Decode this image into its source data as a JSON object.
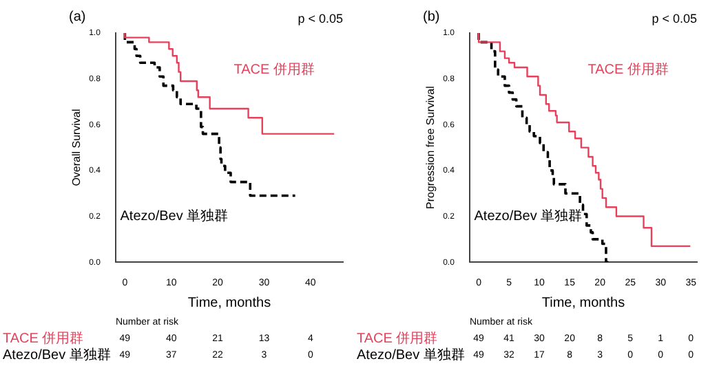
{
  "chart_data": [
    {
      "type": "step",
      "title": "(a)",
      "xlabel": "Time, months",
      "ylabel": "Overall Survival",
      "xlim": [
        -2,
        47
      ],
      "xticks": [
        0,
        10,
        20,
        30,
        40
      ],
      "ylim": [
        0,
        1.0
      ],
      "yticks": [
        {
          "value": 0,
          "label": "0.0"
        },
        {
          "value": 0.2,
          "label": "0.2"
        },
        {
          "value": 0.4,
          "label": "0.4"
        },
        {
          "value": 0.6,
          "label": "0.6"
        },
        {
          "value": 0.8,
          "label": "0.8"
        },
        {
          "value": 1,
          "label": "1.0"
        }
      ],
      "grid": false,
      "legend": false,
      "marker": "none",
      "series": [
        {
          "name": "TACE 併用群",
          "color": "#e8405a",
          "line_style": "solid",
          "x": [
            0,
            5.2,
            9.5,
            10.3,
            11.2,
            11.6,
            12,
            15.5,
            15.8,
            18.3,
            26.6,
            29.6,
            33.8,
            45.1
          ],
          "values": [
            1,
            0.98,
            0.96,
            0.93,
            0.9,
            0.87,
            0.83,
            0.79,
            0.75,
            0.72,
            0.67,
            0.63,
            0.56,
            0.56
          ]
        },
        {
          "name": "Atezo/Bev 単独群",
          "color": "#000000",
          "line_style": "dashed",
          "x": [
            0,
            2.1,
            2.5,
            3.3,
            6.4,
            7.5,
            8.3,
            10.4,
            11.2,
            12,
            15.4,
            16.4,
            16.8,
            20.3,
            20.6,
            20.8,
            21.6,
            22.8,
            27,
            28.6,
            36.7
          ],
          "values": [
            1,
            0.96,
            0.93,
            0.9,
            0.87,
            0.85,
            0.81,
            0.77,
            0.75,
            0.72,
            0.69,
            0.67,
            0.59,
            0.56,
            0.5,
            0.45,
            0.42,
            0.39,
            0.35,
            0.29,
            0.29
          ]
        }
      ],
      "annotations": [
        "p < 0.05",
        "Number at risk",
        "TACE 併用群",
        "49",
        "40",
        "21",
        "13",
        "4",
        "Atezo/Bev 単独群",
        "49",
        "37",
        "22",
        "3",
        "0"
      ]
    },
    {
      "type": "step",
      "title": "(b)",
      "xlabel": "Time, months",
      "ylabel": "Progression free Survival",
      "xlim": [
        -1.5,
        36
      ],
      "xticks": [
        0,
        5,
        10,
        15,
        20,
        25,
        30,
        35
      ],
      "ylim": [
        0,
        1.0
      ],
      "yticks": [
        {
          "value": 0,
          "label": "0.0"
        },
        {
          "value": 0.2,
          "label": "0.2"
        },
        {
          "value": 0.4,
          "label": "0.4"
        },
        {
          "value": 0.6,
          "label": "0.6"
        },
        {
          "value": 0.8,
          "label": "0.8"
        },
        {
          "value": 1,
          "label": "1.0"
        }
      ],
      "grid": false,
      "legend": false,
      "marker": "none",
      "series": [
        {
          "name": "TACE 併用群",
          "color": "#e8405a",
          "line_style": "solid",
          "x": [
            0,
            3.5,
            4.3,
            5,
            5.9,
            8,
            9.8,
            10.1,
            11.1,
            11.6,
            12.7,
            12.9,
            14.9,
            15.9,
            16.9,
            18.1,
            18.8,
            19.3,
            19.8,
            20.1,
            20.4,
            21,
            22.7,
            27.2,
            28.5,
            29.1,
            34.9
          ],
          "values": [
            1,
            0.96,
            0.92,
            0.89,
            0.87,
            0.85,
            0.81,
            0.77,
            0.73,
            0.69,
            0.66,
            0.64,
            0.61,
            0.57,
            0.54,
            0.5,
            0.46,
            0.42,
            0.39,
            0.36,
            0.32,
            0.28,
            0.24,
            0.2,
            0.15,
            0.07,
            0.07
          ]
        },
        {
          "name": "Atezo/Bev 単独群",
          "color": "#000000",
          "line_style": "dashed",
          "x": [
            0,
            2.1,
            2.7,
            3.2,
            4.3,
            5,
            5.6,
            6.2,
            7.2,
            7.9,
            8.4,
            9.1,
            10.1,
            10.7,
            11.4,
            11.7,
            12.2,
            12.4,
            14.3,
            16.7,
            17.2,
            17.8,
            18.5,
            18.8,
            20.4,
            21,
            21.4
          ],
          "values": [
            1,
            0.96,
            0.92,
            0.84,
            0.81,
            0.77,
            0.74,
            0.71,
            0.68,
            0.63,
            0.6,
            0.57,
            0.55,
            0.52,
            0.48,
            0.45,
            0.4,
            0.37,
            0.34,
            0.3,
            0.25,
            0.21,
            0.16,
            0.13,
            0.1,
            0.08,
            0
          ]
        }
      ],
      "annotations": [
        "p < 0.05",
        "Number at risk",
        "TACE 併用群",
        "49",
        "41",
        "30",
        "20",
        "8",
        "5",
        "1",
        "0",
        "Atezo/Bev 単独群",
        "49",
        "32",
        "17",
        "8",
        "3",
        "0",
        "0",
        "0"
      ]
    }
  ]
}
